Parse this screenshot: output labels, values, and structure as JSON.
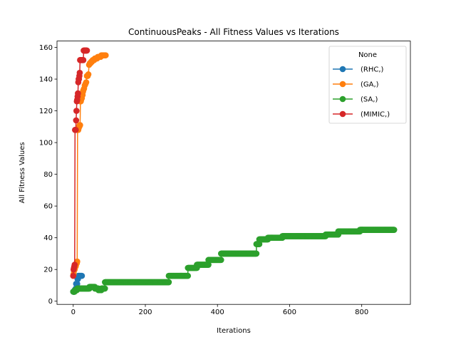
{
  "chart_data": {
    "type": "line",
    "title": "ContinuousPeaks - All Fitness Values vs Iterations",
    "xlabel": "Iterations",
    "ylabel": "All Fitness Values",
    "xlim": [
      -45,
      935
    ],
    "ylim": [
      -2,
      164
    ],
    "xticks": [
      0,
      200,
      400,
      600,
      800
    ],
    "yticks": [
      0,
      20,
      40,
      60,
      80,
      100,
      120,
      140,
      160
    ],
    "grid": false,
    "legend": {
      "title": "None",
      "placement": "top-right"
    },
    "series": [
      {
        "name": "(RHC,)",
        "color": "#1f77b4",
        "x": [
          0,
          1,
          2,
          3,
          4,
          5,
          6,
          7,
          8,
          9,
          10,
          11,
          12,
          13,
          14,
          15,
          16,
          17,
          18,
          19,
          20,
          21,
          22,
          23,
          24
        ],
        "y": [
          6,
          6,
          6,
          6,
          7,
          7,
          7,
          8,
          11,
          11,
          11,
          11,
          14,
          14,
          16,
          16,
          16,
          16,
          16,
          16,
          16,
          16,
          16,
          16,
          16
        ]
      },
      {
        "name": "(GA,)",
        "color": "#ff7f0e",
        "x": [
          0,
          1,
          2,
          3,
          4,
          5,
          6,
          7,
          8,
          9,
          10,
          11,
          12,
          13,
          14,
          15,
          16,
          17,
          18,
          19,
          20,
          21,
          22,
          23,
          24,
          25,
          26,
          27,
          28,
          30,
          32,
          34,
          36,
          38,
          40,
          42,
          44,
          46,
          48,
          50,
          52,
          54,
          56,
          58,
          60,
          62,
          64,
          66,
          68,
          70,
          72,
          74,
          76,
          78,
          80,
          82,
          84,
          86,
          88,
          90
        ],
        "y": [
          16,
          17,
          19,
          20,
          20,
          21,
          22,
          22,
          23,
          24,
          24,
          25,
          108,
          108,
          108,
          109,
          110,
          110,
          111,
          111,
          126,
          126,
          127,
          128,
          128,
          130,
          130,
          132,
          133,
          134,
          136,
          137,
          138,
          142,
          142,
          143,
          149,
          150,
          150,
          151,
          151,
          152,
          152,
          152,
          153,
          153,
          153,
          153,
          154,
          154,
          154,
          154,
          154,
          155,
          155,
          155,
          155,
          155,
          155,
          155
        ]
      },
      {
        "name": "(SA,)",
        "color": "#2ca02c",
        "segments": [
          {
            "x0": 0,
            "x1": 4,
            "y": 6
          },
          {
            "x0": 5,
            "x1": 10,
            "y": 7
          },
          {
            "x0": 11,
            "x1": 45,
            "y": 8
          },
          {
            "x0": 45,
            "x1": 60,
            "y": 9
          },
          {
            "x0": 60,
            "x1": 70,
            "y": 8
          },
          {
            "x0": 70,
            "x1": 78,
            "y": 7
          },
          {
            "x0": 78,
            "x1": 88,
            "y": 8
          },
          {
            "x0": 88,
            "x1": 265,
            "y": 12
          },
          {
            "x0": 265,
            "x1": 318,
            "y": 16
          },
          {
            "x0": 318,
            "x1": 343,
            "y": 21
          },
          {
            "x0": 343,
            "x1": 375,
            "y": 23
          },
          {
            "x0": 375,
            "x1": 410,
            "y": 26
          },
          {
            "x0": 410,
            "x1": 508,
            "y": 30
          },
          {
            "x0": 508,
            "x1": 516,
            "y": 36
          },
          {
            "x0": 516,
            "x1": 540,
            "y": 39
          },
          {
            "x0": 540,
            "x1": 580,
            "y": 40
          },
          {
            "x0": 580,
            "x1": 700,
            "y": 41
          },
          {
            "x0": 700,
            "x1": 735,
            "y": 42
          },
          {
            "x0": 735,
            "x1": 795,
            "y": 44
          },
          {
            "x0": 795,
            "x1": 890,
            "y": 45
          }
        ]
      },
      {
        "name": "(MIMIC,)",
        "color": "#d62728",
        "x": [
          0,
          1,
          2,
          3,
          4,
          5,
          6,
          7,
          8,
          9,
          10,
          11,
          12,
          13,
          14,
          15,
          16,
          17,
          18,
          19,
          20,
          21,
          22,
          23,
          24,
          25,
          26,
          27,
          28,
          29,
          30,
          31,
          32,
          33,
          34,
          35,
          36,
          37,
          38
        ],
        "y": [
          16,
          20,
          21,
          22,
          23,
          108,
          108,
          108,
          114,
          120,
          126,
          127,
          129,
          131,
          138,
          140,
          140,
          142,
          144,
          152,
          152,
          152,
          152,
          152,
          152,
          152,
          152,
          152,
          152,
          158,
          158,
          158,
          158,
          158,
          158,
          158,
          158,
          158,
          158
        ]
      }
    ]
  }
}
